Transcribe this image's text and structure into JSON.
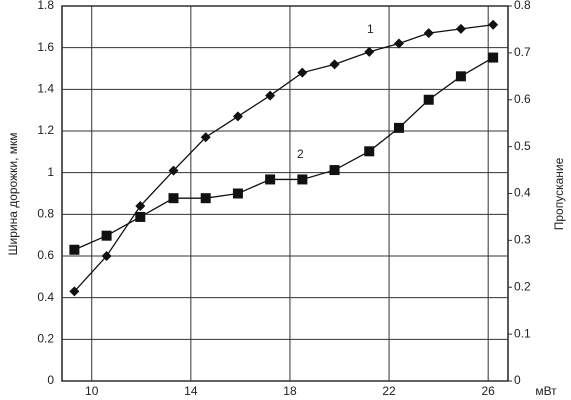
{
  "chart_data": {
    "type": "scatter",
    "x_label": "мВт",
    "y_label": "Ширина дорожки, мкм",
    "y2_label": "Пропускание",
    "annotations": [
      "1",
      "2"
    ],
    "xlim": [
      8.8,
      26.8
    ],
    "xticks": [
      10,
      14,
      18,
      22,
      26
    ],
    "ylim": [
      0,
      1.8
    ],
    "yticks": [
      0,
      0.2,
      0.4,
      0.6,
      0.8,
      1,
      1.2,
      1.4,
      1.6,
      1.8
    ],
    "y2lim": [
      0,
      0.8
    ],
    "y2ticks": [
      0,
      0.1,
      0.2,
      0.3,
      0.4,
      0.5,
      0.6,
      0.7,
      0.8
    ],
    "grid": true,
    "x": [
      9.3,
      10.6,
      11.96,
      13.3,
      14.6,
      15.9,
      17.2,
      18.5,
      19.8,
      21.2,
      22.4,
      23.6,
      24.9,
      26.2
    ],
    "series": [
      {
        "color": "#111",
        "marker": "diamond",
        "values": [
          0.43,
          0.6,
          0.84,
          1.01,
          1.17,
          1.27,
          1.37,
          1.48,
          1.52,
          1.58,
          1.62,
          1.67,
          1.69,
          1.71
        ]
      },
      {
        "color": "#111",
        "marker": "square",
        "axis": "y2",
        "values": [
          0.28,
          0.31,
          0.35,
          0.39,
          0.39,
          0.4,
          0.43,
          0.43,
          0.45,
          0.49,
          0.54,
          0.6,
          0.65,
          0.69
        ]
      }
    ]
  }
}
